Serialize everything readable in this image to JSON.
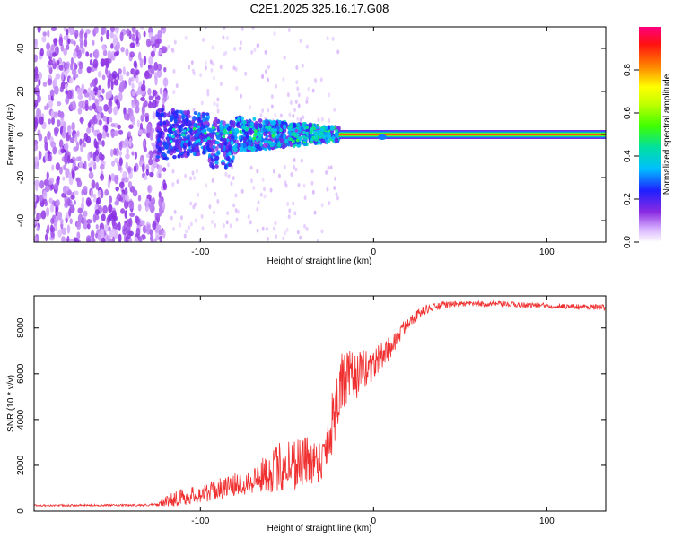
{
  "title": "C2E1.2025.325.16.17.G08",
  "chart_data": [
    {
      "type": "heatmap",
      "name": "spectrogram",
      "xlabel": "Height of straight line (km)",
      "ylabel": "Frequency (Hz)",
      "xlim": [
        -196,
        134
      ],
      "ylim": [
        -50,
        50
      ],
      "xticks": [
        -100,
        0,
        100
      ],
      "yticks": [
        -40,
        -20,
        0,
        20,
        40
      ],
      "colorbar": {
        "label": "Normalized spectral amplitude",
        "range": [
          0,
          1
        ],
        "ticks": [
          0.0,
          0.2,
          0.4,
          0.6,
          0.8
        ]
      },
      "features": {
        "noise_region_x": [
          -196,
          -120
        ],
        "transition_region_x": [
          -120,
          -20
        ],
        "tone_start_x": -20,
        "tone_frequency": 0
      }
    },
    {
      "type": "line",
      "name": "snr",
      "xlabel": "Height of straight line (km)",
      "ylabel": "SNR (10 * v/v)",
      "xlim": [
        -196,
        134
      ],
      "ylim": [
        0,
        9400
      ],
      "xticks": [
        -100,
        0,
        100
      ],
      "yticks": [
        0,
        2000,
        4000,
        6000,
        8000
      ],
      "color": "#f03030",
      "x": [
        -196,
        -180,
        -160,
        -140,
        -125,
        -115,
        -100,
        -90,
        -80,
        -70,
        -60,
        -50,
        -40,
        -30,
        -25,
        -20,
        -15,
        -10,
        -5,
        0,
        5,
        10,
        15,
        20,
        30,
        40,
        50,
        70,
        90,
        110,
        134
      ],
      "y": [
        250,
        250,
        260,
        260,
        280,
        550,
        750,
        950,
        1150,
        1350,
        1700,
        2100,
        2200,
        2200,
        3500,
        5400,
        5800,
        5900,
        6200,
        6400,
        6800,
        7200,
        7700,
        8300,
        8800,
        9000,
        9050,
        9050,
        9000,
        8950,
        8900
      ],
      "noise_amp": [
        40,
        40,
        40,
        40,
        60,
        350,
        400,
        450,
        500,
        600,
        900,
        1300,
        1200,
        900,
        1500,
        1500,
        1200,
        1000,
        900,
        700,
        600,
        500,
        350,
        300,
        200,
        150,
        120,
        120,
        120,
        120,
        120
      ]
    }
  ]
}
